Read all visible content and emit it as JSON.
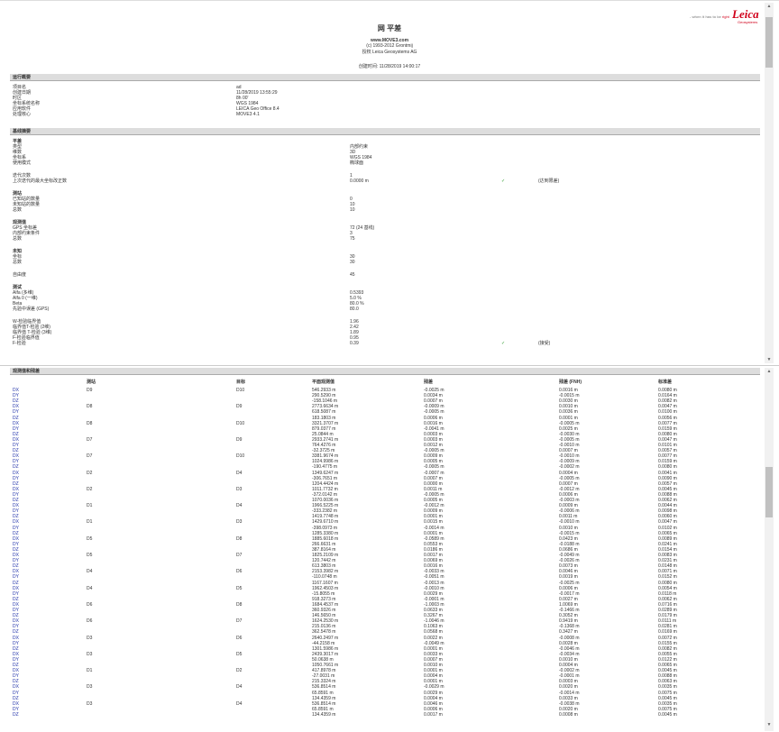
{
  "header": {
    "title": "网 平差",
    "website": "www.MOVE3.com",
    "copyright": "(c) 1993-2012 Grontmij",
    "license": "授权 Leica Geosystems AG",
    "created_label": "创建时间:",
    "created_value": "11/28/2019 14:00:17",
    "logo": "Leica",
    "logo_sub": "Geosystems",
    "tagline_pre": "- when it has to be ",
    "tagline_accent": "right"
  },
  "run_summary": {
    "title": "运行概要",
    "items": [
      [
        "项目名",
        "ad"
      ],
      [
        "创建日期",
        "11/28/2019 13:55:29"
      ],
      [
        "时区",
        "8h 00'"
      ],
      [
        "坐标系统名称",
        "WGS 1984"
      ],
      [
        "应用软件",
        "LEICA Geo Office 8.4"
      ],
      [
        "处理核心",
        "MOVE3 4.1"
      ]
    ]
  },
  "baseline_summary": {
    "title": "基线摘要",
    "groups": [
      {
        "heading": "平差",
        "items": [
          [
            "类型",
            "内部约束"
          ],
          [
            "维数",
            "3D"
          ],
          [
            "坐标系",
            "WGS 1984"
          ],
          [
            "使用模式",
            "椭球面"
          ]
        ]
      },
      {
        "heading": "",
        "items": [
          [
            "迭代次数",
            "1"
          ],
          [
            "上次迭代的最大坐标改正数",
            "0.0000 m",
            "✓",
            "(达到限差)"
          ]
        ]
      },
      {
        "heading": "测站",
        "items": [
          [
            "已知站的数量",
            "0"
          ],
          [
            "未知站的数量",
            "10"
          ],
          [
            "总数",
            "10"
          ]
        ]
      },
      {
        "heading": "观测值",
        "items": [
          [
            "GPS 坐标差",
            "72 (24 基线)"
          ],
          [
            "内部约束条件",
            "3"
          ],
          [
            "总数",
            "75"
          ]
        ]
      },
      {
        "heading": "未知",
        "items": [
          [
            "坐标",
            "30"
          ],
          [
            "总数",
            "30"
          ]
        ]
      },
      {
        "heading": "",
        "items": [
          [
            "自由度",
            "45"
          ]
        ]
      },
      {
        "heading": "测试",
        "items": [
          [
            "Alfa (多维)",
            "0.5393"
          ],
          [
            "Alfa 0 (一维)",
            "5.0 %"
          ],
          [
            "Beta",
            "80.0 %"
          ],
          [
            "先验中误差 (GPS)",
            "80.0"
          ]
        ]
      },
      {
        "heading": "",
        "items": [
          [
            "W-检验临界值",
            "1.96"
          ],
          [
            "临界值T-检验 (2维)",
            "2.42"
          ],
          [
            "临界值 T-检验 (3维)",
            "1.89"
          ],
          [
            "F-检验临界值",
            "0.95"
          ],
          [
            "F-检验",
            "0.39",
            "✓",
            "(接受)"
          ]
        ]
      }
    ]
  },
  "observations": {
    "title": "观测值和残差",
    "columns": [
      "",
      "测站",
      "目标",
      "平面观测值",
      "残差",
      "残差 (FNH)",
      "标准差"
    ],
    "rows": [
      [
        "DX",
        "D9",
        "D10",
        "546.2933 m",
        "-0.0025 m",
        "0.0016 m",
        "0.0080 m"
      ],
      [
        "DY",
        "",
        "",
        "290.5290 m",
        "0.0034 m",
        "-0.0015 m",
        "0.0164 m"
      ],
      [
        "DZ",
        "",
        "",
        "-158.1046 m",
        "0.0007 m",
        "0.0030 m",
        "0.0082 m"
      ],
      [
        "DX",
        "D8",
        "D9",
        "2773.6634 m",
        "-0.0009 m",
        "0.0010 m",
        "0.0047 m"
      ],
      [
        "DY",
        "",
        "",
        "618.5087 m",
        "-0.0005 m",
        "0.0036 m",
        "0.0100 m"
      ],
      [
        "DZ",
        "",
        "",
        "183.1803 m",
        "0.0006 m",
        "0.0001 m",
        "0.0056 m"
      ],
      [
        "DX",
        "D8",
        "D10",
        "3321.3707 m",
        "0.0016 m",
        "-0.0005 m",
        "0.0077 m"
      ],
      [
        "DY",
        "",
        "",
        "879.0377 m",
        "-0.0041 m",
        "0.0025 m",
        "0.0159 m"
      ],
      [
        "DZ",
        "",
        "",
        "25.0844 m",
        "0.0003 m",
        "-0.0030 m",
        "0.0080 m"
      ],
      [
        "DX",
        "D7",
        "D9",
        "2933.2741 m",
        "0.0003 m",
        "-0.0005 m",
        "0.0047 m"
      ],
      [
        "DY",
        "",
        "",
        "764.4276 m",
        "0.0012 m",
        "-0.0010 m",
        "0.0101 m"
      ],
      [
        "DZ",
        "",
        "",
        "-32.3725 m",
        "-0.0005 m",
        "0.0007 m",
        "0.0057 m"
      ],
      [
        "DX",
        "D7",
        "D10",
        "3381.9674 m",
        "0.0009 m",
        "-0.0010 m",
        "0.0077 m"
      ],
      [
        "DY",
        "",
        "",
        "1024.9986 m",
        "0.0005 m",
        "-0.0009 m",
        "0.0159 m"
      ],
      [
        "DZ",
        "",
        "",
        "-190.4775 m",
        "-0.0005 m",
        "-0.0002 m",
        "0.0080 m"
      ],
      [
        "DX",
        "D2",
        "D4",
        "1349.6247 m",
        "-0.0007 m",
        "0.0004 m",
        "0.0041 m"
      ],
      [
        "DY",
        "",
        "",
        "-306.7651 m",
        "0.0007 m",
        "-0.0005 m",
        "0.0090 m"
      ],
      [
        "DZ",
        "",
        "",
        "1204.4424 m",
        "0.0000 m",
        "0.0007 m",
        "0.0057 m"
      ],
      [
        "DX",
        "D2",
        "D3",
        "1011.7732 m",
        "0.0011 m",
        "-0.0012 m",
        "0.0045 m"
      ],
      [
        "DY",
        "",
        "",
        "-372.0142 m",
        "-0.0005 m",
        "0.0006 m",
        "0.0088 m"
      ],
      [
        "DZ",
        "",
        "",
        "1070.0036 m",
        "0.0005 m",
        "-0.0003 m",
        "0.0062 m"
      ],
      [
        "DX",
        "D1",
        "D4",
        "1966.5225 m",
        "-0.0012 m",
        "0.0009 m",
        "0.0044 m"
      ],
      [
        "DY",
        "",
        "",
        "-333.2382 m",
        "0.0009 m",
        "-0.0006 m",
        "0.0098 m"
      ],
      [
        "DZ",
        "",
        "",
        "1419.7748 m",
        "0.0001 m",
        "0.0011 m",
        "0.0060 m"
      ],
      [
        "DX",
        "D1",
        "D3",
        "1429.6710 m",
        "0.0015 m",
        "-0.0010 m",
        "0.0047 m"
      ],
      [
        "DY",
        "",
        "",
        "-398.0973 m",
        "-0.0014 m",
        "0.0010 m",
        "0.0102 m"
      ],
      [
        "DZ",
        "",
        "",
        "1285.3380 m",
        "0.0001 m",
        "-0.0015 m",
        "0.0065 m"
      ],
      [
        "DX",
        "D5",
        "D8",
        "1885.6018 m",
        "-0.0589 m",
        "0.0423 m",
        "0.0089 m"
      ],
      [
        "DY",
        "",
        "",
        "266.6631 m",
        "0.0553 m",
        "-0.0188 m",
        "0.0241 m"
      ],
      [
        "DZ",
        "",
        "",
        "387.8164 m",
        "0.0186 m",
        "0.0686 m",
        "0.0154 m"
      ],
      [
        "DX",
        "D5",
        "D7",
        "1825.2109 m",
        "0.0017 m",
        "-0.0049 m",
        "0.0083 m"
      ],
      [
        "DY",
        "",
        "",
        "120.7442 m",
        "0.0069 m",
        "-0.0026 m",
        "0.0231 m"
      ],
      [
        "DZ",
        "",
        "",
        "613.3803 m",
        "0.0016 m",
        "0.0073 m",
        "0.0148 m"
      ],
      [
        "DX",
        "D4",
        "D6",
        "2153.3982 m",
        "-0.0033 m",
        "0.0046 m",
        "0.0071 m"
      ],
      [
        "DY",
        "",
        "",
        "-110.0748 m",
        "-0.0051 m",
        "0.0019 m",
        "0.0152 m"
      ],
      [
        "DZ",
        "",
        "",
        "1167.1607 m",
        "-0.0013 m",
        "-0.0025 m",
        "0.0080 m"
      ],
      [
        "DX",
        "D4",
        "D5",
        "1962.4503 m",
        "-0.0010 m",
        "0.0006 m",
        "0.0054 m"
      ],
      [
        "DY",
        "",
        "",
        "-15.8055 m",
        "0.0029 m",
        "-0.0017 m",
        "0.0118 m"
      ],
      [
        "DZ",
        "",
        "",
        "918.3273 m",
        "-0.0001 m",
        "0.0027 m",
        "0.0062 m"
      ],
      [
        "DX",
        "D6",
        "D8",
        "1684.4537 m",
        "-1.0003 m",
        "1.0069 m",
        "0.0716 m"
      ],
      [
        "DY",
        "",
        "",
        "360.9326 m",
        "0.0633 m",
        "-0.1466 m",
        "0.0289 m"
      ],
      [
        "DZ",
        "",
        "",
        "146.5650 m",
        "0.3267 m",
        "0.3052 m",
        "0.0179 m"
      ],
      [
        "DX",
        "D6",
        "D7",
        "1624.2530 m",
        "-1.0046 m",
        "0.9419 m",
        "0.0111 m"
      ],
      [
        "DY",
        "",
        "",
        "215.0136 m",
        "0.1063 m",
        "-0.1368 m",
        "0.0281 m"
      ],
      [
        "DZ",
        "",
        "",
        "362.5478 m",
        "0.0568 m",
        "0.3427 m",
        "0.0169 m"
      ],
      [
        "DX",
        "D3",
        "D6",
        "2640.2497 m",
        "0.0022 m",
        "-0.0008 m",
        "0.0072 m"
      ],
      [
        "DY",
        "",
        "",
        "-44.2158 m",
        "-0.0049 m",
        "0.0028 m",
        "0.0155 m"
      ],
      [
        "DZ",
        "",
        "",
        "1301.5986 m",
        "0.0001 m",
        "-0.0046 m",
        "0.0082 m"
      ],
      [
        "DX",
        "D3",
        "D5",
        "2439.3017 m",
        "0.0033 m",
        "-0.0034 m",
        "0.0055 m"
      ],
      [
        "DY",
        "",
        "",
        "50.0638 m",
        "0.0007 m",
        "0.0010 m",
        "0.0122 m"
      ],
      [
        "DZ",
        "",
        "",
        "1050.7661 m",
        "0.0010 m",
        "0.0004 m",
        "0.0065 m"
      ],
      [
        "DX",
        "D1",
        "D2",
        "417.8978 m",
        "0.0001 m",
        "-0.0002 m",
        "0.0045 m"
      ],
      [
        "DY",
        "",
        "",
        "-27.0031 m",
        "0.0004 m",
        "-0.0001 m",
        "0.0088 m"
      ],
      [
        "DZ",
        "",
        "",
        "215.3324 m",
        "0.0001 m",
        "0.0003 m",
        "0.0063 m"
      ],
      [
        "DX",
        "D3",
        "D4",
        "536.8514 m",
        "-0.0029 m",
        "0.0020 m",
        "0.0035 m"
      ],
      [
        "DY",
        "",
        "",
        "65.8591 m",
        "0.0029 m",
        "-0.0014 m",
        "0.0075 m"
      ],
      [
        "DZ",
        "",
        "",
        "134.4359 m",
        "0.0004 m",
        "0.0033 m",
        "0.0045 m"
      ],
      [
        "DX",
        "D3",
        "D4",
        "536.8514 m",
        "0.0046 m",
        "-0.0038 m",
        "0.0035 m"
      ],
      [
        "DY",
        "",
        "",
        "65.8591 m",
        "0.0006 m",
        "0.0020 m",
        "0.0075 m"
      ],
      [
        "DZ",
        "",
        "",
        "134.4359 m",
        "0.0017 m",
        "0.0008 m",
        "0.0045 m"
      ]
    ]
  },
  "colors": {
    "link": "#2233aa",
    "check": "#2a9a2a",
    "brand": "#d0001a",
    "section_bar": "#dddddd"
  }
}
